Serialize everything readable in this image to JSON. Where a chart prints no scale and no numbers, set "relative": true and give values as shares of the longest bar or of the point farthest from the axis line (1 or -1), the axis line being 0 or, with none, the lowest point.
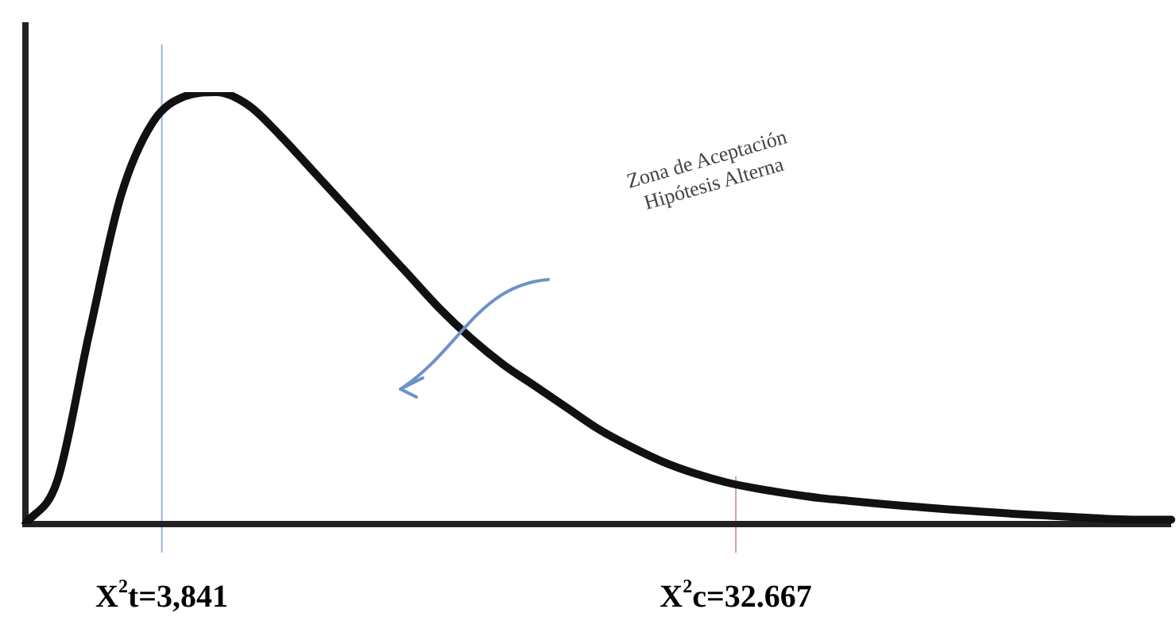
{
  "chart_data": {
    "type": "line",
    "relative": true,
    "marker": "none",
    "line_style": "solid",
    "categories": [
      null,
      null,
      null,
      null,
      null,
      null,
      null,
      null,
      null,
      null,
      null,
      null,
      null,
      null,
      null,
      null,
      null,
      null,
      null,
      null,
      null,
      null,
      null,
      null,
      null,
      null,
      null,
      null,
      null,
      null,
      null,
      null,
      null,
      null,
      null,
      null,
      null
    ],
    "series": [
      {
        "color": "#111111",
        "values": [
          0,
          0.1,
          0.44,
          0.76,
          0.93,
          0.99,
          1,
          0.97,
          0.9,
          0.82,
          0.74,
          0.66,
          0.58,
          0.5,
          0.43,
          0.37,
          0.32,
          0.27,
          0.22,
          0.18,
          0.145,
          0.118,
          0.097,
          0.082,
          0.07,
          0.06,
          0.053,
          0.046,
          0.04,
          0.034,
          0.029,
          0.024,
          0.02,
          0.016,
          0.012,
          0.01,
          0.01
        ]
      }
    ],
    "annotations": [
      "X$^{2}$t=3,841",
      "X$^{2}$c=32.667",
      "Zona de Aceptación\nHipótesis Alterna"
    ]
  }
}
